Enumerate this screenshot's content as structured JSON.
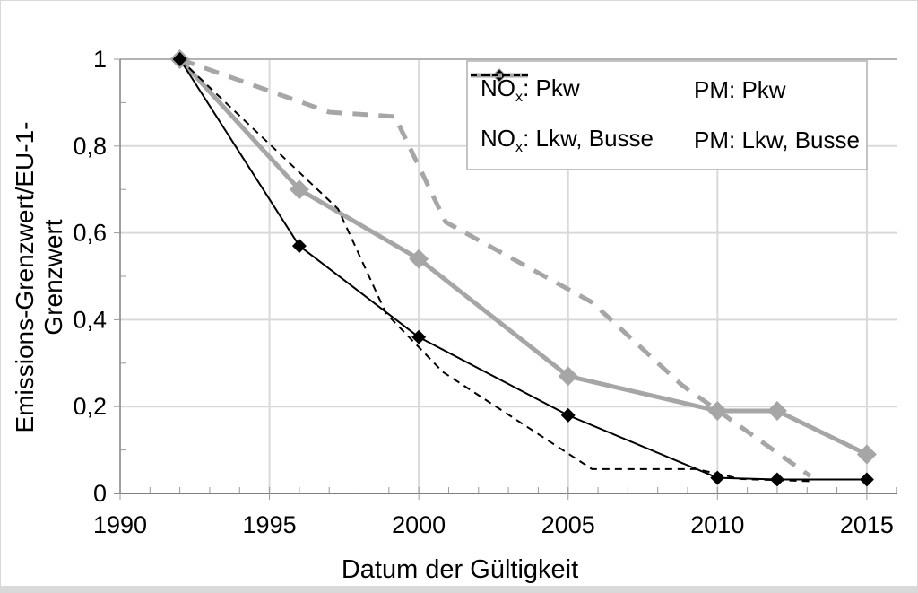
{
  "figure": {
    "background": "#ffffff",
    "border_color": "#d8d8d8",
    "bottom_strip_color": "#d9d9d9"
  },
  "colors": {
    "series_gray": "#a6a6a6",
    "series_black": "#000000",
    "gridline": "#d9d9d9",
    "gridline_top": "#b3b3b3",
    "axis_line": "#808080",
    "tick_mark": "#999999",
    "legend_border": "#c3c3c3"
  },
  "axes": {
    "x": {
      "title": "Datum der Gültigkeit",
      "ticks": [
        {
          "label": "1990",
          "value": 1990
        },
        {
          "label": "1995",
          "value": 1995
        },
        {
          "label": "2000",
          "value": 2000
        },
        {
          "label": "2005",
          "value": 2005
        },
        {
          "label": "2010",
          "value": 2010
        },
        {
          "label": "2015",
          "value": 2015
        }
      ],
      "minor_step": 1
    },
    "y": {
      "title": "Emissions-Grenzwert/EU-1-Grenzwert",
      "ticks": [
        {
          "label": "1",
          "value": 1
        },
        {
          "label": "0,8",
          "value": 0.8
        },
        {
          "label": "0,6",
          "value": 0.6
        },
        {
          "label": "0,4",
          "value": 0.4
        },
        {
          "label": "0,2",
          "value": 0.2
        },
        {
          "label": "0",
          "value": 0
        }
      ],
      "minor_step": 0.1
    }
  },
  "chart_data": {
    "type": "line",
    "title": "",
    "xlabel": "Datum der Gültigkeit",
    "ylabel": "Emissions-Grenzwert/EU-1-Grenzwert",
    "xlim": [
      1990,
      2016
    ],
    "ylim": [
      0,
      1
    ],
    "grid": true,
    "legend_position": "top-right",
    "series": [
      {
        "name": "NOx: Pkw",
        "label_pre": "NO",
        "label_sub": "x",
        "label_post": ": Pkw",
        "color": "#a6a6a6",
        "style": "solid",
        "width": 5,
        "marker": "diamond",
        "marker_size": 11,
        "points": [
          [
            1992,
            1.0
          ],
          [
            1996,
            0.7
          ],
          [
            2000,
            0.54
          ],
          [
            2005,
            0.27
          ],
          [
            2010,
            0.19
          ],
          [
            2012,
            0.19
          ],
          [
            2015,
            0.09
          ]
        ]
      },
      {
        "name": "PM: Pkw",
        "label_pre": "PM",
        "label_sub": "",
        "label_post": ": Pkw",
        "color": "#000000",
        "style": "solid",
        "width": 2,
        "marker": "diamond",
        "marker_size": 8,
        "points": [
          [
            1992,
            1.0
          ],
          [
            1996,
            0.57
          ],
          [
            2000,
            0.36
          ],
          [
            2005,
            0.18
          ],
          [
            2010,
            0.036
          ],
          [
            2012,
            0.032
          ],
          [
            2015,
            0.032
          ]
        ]
      },
      {
        "name": "NOx: Lkw, Busse",
        "label_pre": "NO",
        "label_sub": "x",
        "label_post": ": Lkw, Busse",
        "color": "#a6a6a6",
        "style": "dashed",
        "width": 5,
        "marker": "none",
        "marker_size": 0,
        "points": [
          [
            1992,
            1.0
          ],
          [
            1997,
            0.878
          ],
          [
            1999.2,
            0.868
          ],
          [
            2000.9,
            0.625
          ],
          [
            2005.8,
            0.44
          ],
          [
            2008.8,
            0.25
          ],
          [
            2013.1,
            0.04
          ]
        ]
      },
      {
        "name": "PM: Lkw, Busse",
        "label_pre": "PM",
        "label_sub": "",
        "label_post": ": Lkw, Busse",
        "color": "#000000",
        "style": "dashed",
        "width": 2,
        "marker": "none",
        "marker_size": 0,
        "points": [
          [
            1992,
            1.0
          ],
          [
            1997.3,
            0.655
          ],
          [
            1998.9,
            0.415
          ],
          [
            2000.8,
            0.28
          ],
          [
            2005.8,
            0.056
          ],
          [
            2009.3,
            0.056
          ],
          [
            2010.8,
            0.033
          ],
          [
            2013.1,
            0.028
          ]
        ]
      }
    ]
  }
}
